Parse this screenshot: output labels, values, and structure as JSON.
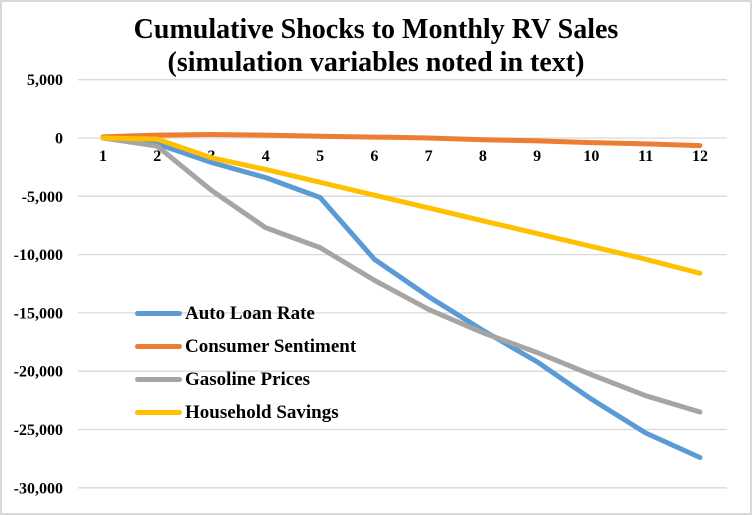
{
  "chart_data": {
    "type": "line",
    "title_line1": "Cumulative Shocks to Monthly RV Sales",
    "title_line2": "(simulation variables noted in text)",
    "categories": [
      "1",
      "2",
      "3",
      "4",
      "5",
      "6",
      "7",
      "8",
      "9",
      "10",
      "11",
      "12"
    ],
    "series": [
      {
        "name": "Auto Loan Rate",
        "color": "#5B9BD5",
        "values": [
          0,
          -500,
          -2100,
          -3400,
          -5100,
          -10400,
          -13600,
          -16500,
          -19200,
          -22400,
          -25300,
          -27400
        ]
      },
      {
        "name": "Consumer Sentiment",
        "color": "#ED7D31",
        "values": [
          100,
          250,
          300,
          250,
          150,
          80,
          0,
          -150,
          -250,
          -400,
          -500,
          -650
        ]
      },
      {
        "name": "Gasoline Prices",
        "color": "#A5A5A5",
        "values": [
          0,
          -700,
          -4500,
          -7700,
          -9400,
          -12200,
          -14700,
          -16700,
          -18400,
          -20300,
          -22100,
          -23500
        ]
      },
      {
        "name": "Household Savings",
        "color": "#FFC000",
        "values": [
          0,
          -100,
          -1700,
          -2700,
          -3800,
          -4900,
          -6000,
          -7100,
          -8200,
          -9300,
          -10400,
          -11600
        ]
      }
    ],
    "y_axis": {
      "min": -30000,
      "max": 5000,
      "step": 5000,
      "tick_labels": [
        "5,000",
        "0",
        "-5,000",
        "-10,000",
        "-15,000",
        "-20,000",
        "-25,000",
        "-30,000"
      ]
    },
    "xlabel": "",
    "ylabel": "",
    "grid": true,
    "gridline_color": "#D9D9D9",
    "legend_position": "middle-left",
    "background": "#FFFFFF",
    "text_color": "#000000"
  }
}
